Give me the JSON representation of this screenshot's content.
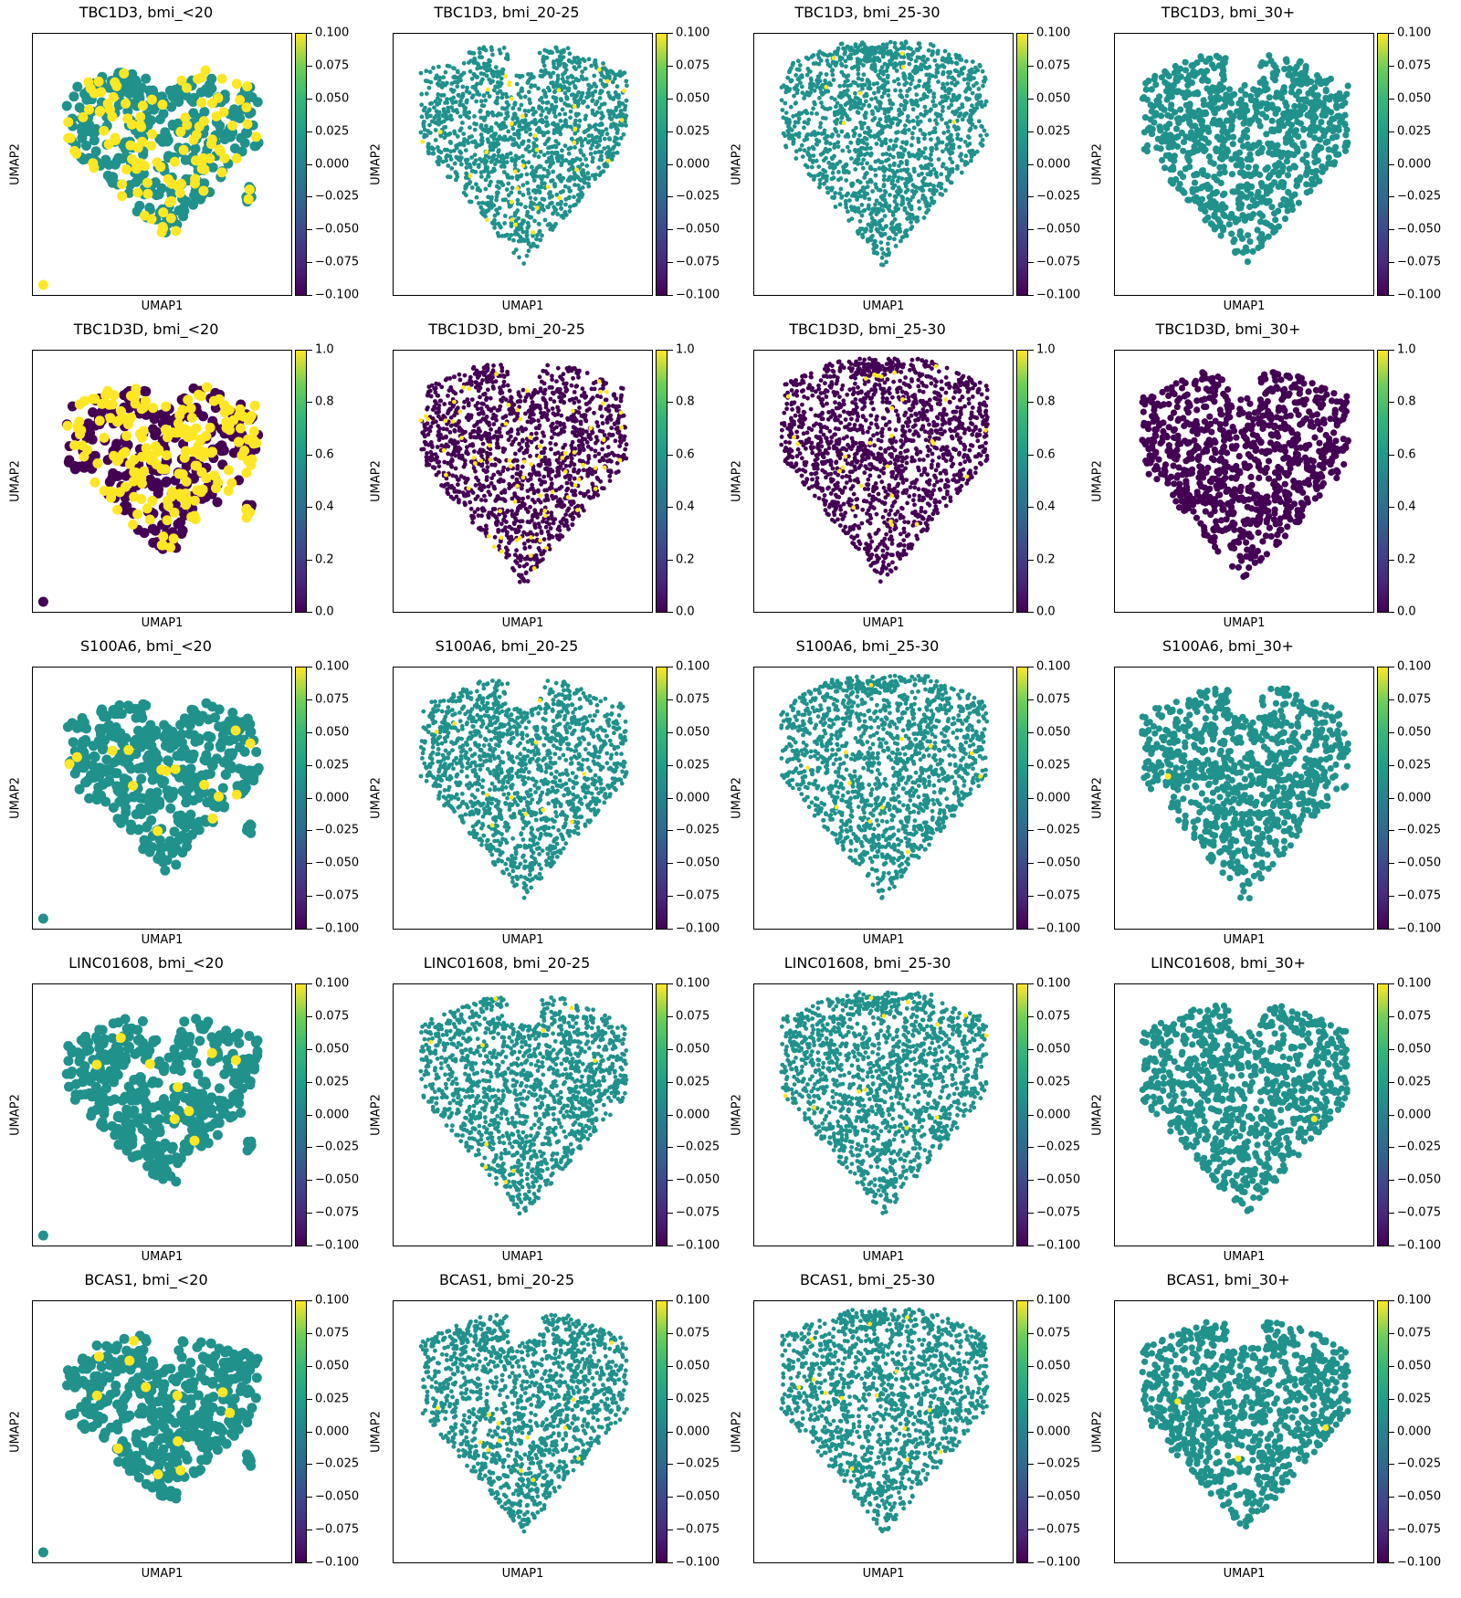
{
  "figure": {
    "xlabel": "UMAP1",
    "ylabel": "UMAP2"
  },
  "colors": {
    "expressed": "#fde725",
    "not_expressed_zero_scale": "#21918c",
    "not_expressed_binary_scale": "#440154",
    "colormap": "viridis"
  },
  "colorbars": {
    "symmetric": [
      "0.100",
      "0.075",
      "0.050",
      "0.025",
      "0.000",
      "−0.025",
      "−0.050",
      "−0.075",
      "−0.100"
    ],
    "unit": [
      "1.0",
      "0.8",
      "0.6",
      "0.4",
      "0.2",
      "0.0"
    ]
  },
  "chart_data": [
    {
      "type": "scatter",
      "title": "TBC1D3, bmi_<20",
      "xlabel": "UMAP1",
      "ylabel": "UMAP2",
      "colorbar_range": [
        -0.1,
        0.1
      ],
      "legend": "colorbar-right",
      "grid": false
    },
    {
      "type": "scatter",
      "title": "TBC1D3, bmi_20-25",
      "xlabel": "UMAP1",
      "ylabel": "UMAP2",
      "colorbar_range": [
        -0.1,
        0.1
      ],
      "legend": "colorbar-right",
      "grid": false
    },
    {
      "type": "scatter",
      "title": "TBC1D3, bmi_25-30",
      "xlabel": "UMAP1",
      "ylabel": "UMAP2",
      "colorbar_range": [
        -0.1,
        0.1
      ],
      "legend": "colorbar-right",
      "grid": false
    },
    {
      "type": "scatter",
      "title": "TBC1D3, bmi_30+",
      "xlabel": "UMAP1",
      "ylabel": "UMAP2",
      "colorbar_range": [
        -0.1,
        0.1
      ],
      "legend": "colorbar-right",
      "grid": false
    },
    {
      "type": "scatter",
      "title": "TBC1D3D, bmi_<20",
      "xlabel": "UMAP1",
      "ylabel": "UMAP2",
      "colorbar_range": [
        0.0,
        1.0
      ],
      "legend": "colorbar-right",
      "grid": false
    },
    {
      "type": "scatter",
      "title": "TBC1D3D, bmi_20-25",
      "xlabel": "UMAP1",
      "ylabel": "UMAP2",
      "colorbar_range": [
        0.0,
        1.0
      ],
      "legend": "colorbar-right",
      "grid": false
    },
    {
      "type": "scatter",
      "title": "TBC1D3D, bmi_25-30",
      "xlabel": "UMAP1",
      "ylabel": "UMAP2",
      "colorbar_range": [
        0.0,
        1.0
      ],
      "legend": "colorbar-right",
      "grid": false
    },
    {
      "type": "scatter",
      "title": "TBC1D3D, bmi_30+",
      "xlabel": "UMAP1",
      "ylabel": "UMAP2",
      "colorbar_range": [
        0.0,
        1.0
      ],
      "legend": "colorbar-right",
      "grid": false
    },
    {
      "type": "scatter",
      "title": "S100A6, bmi_<20",
      "xlabel": "UMAP1",
      "ylabel": "UMAP2",
      "colorbar_range": [
        -0.1,
        0.1
      ],
      "legend": "colorbar-right",
      "grid": false
    },
    {
      "type": "scatter",
      "title": "S100A6, bmi_20-25",
      "xlabel": "UMAP1",
      "ylabel": "UMAP2",
      "colorbar_range": [
        -0.1,
        0.1
      ],
      "legend": "colorbar-right",
      "grid": false
    },
    {
      "type": "scatter",
      "title": "S100A6, bmi_25-30",
      "xlabel": "UMAP1",
      "ylabel": "UMAP2",
      "colorbar_range": [
        -0.1,
        0.1
      ],
      "legend": "colorbar-right",
      "grid": false
    },
    {
      "type": "scatter",
      "title": "S100A6, bmi_30+",
      "xlabel": "UMAP1",
      "ylabel": "UMAP2",
      "colorbar_range": [
        -0.1,
        0.1
      ],
      "legend": "colorbar-right",
      "grid": false
    },
    {
      "type": "scatter",
      "title": "LINC01608, bmi_<20",
      "xlabel": "UMAP1",
      "ylabel": "UMAP2",
      "colorbar_range": [
        -0.1,
        0.1
      ],
      "legend": "colorbar-right",
      "grid": false
    },
    {
      "type": "scatter",
      "title": "LINC01608, bmi_20-25",
      "xlabel": "UMAP1",
      "ylabel": "UMAP2",
      "colorbar_range": [
        -0.1,
        0.1
      ],
      "legend": "colorbar-right",
      "grid": false
    },
    {
      "type": "scatter",
      "title": "LINC01608, bmi_25-30",
      "xlabel": "UMAP1",
      "ylabel": "UMAP2",
      "colorbar_range": [
        -0.1,
        0.1
      ],
      "legend": "colorbar-right",
      "grid": false
    },
    {
      "type": "scatter",
      "title": "LINC01608, bmi_30+",
      "xlabel": "UMAP1",
      "ylabel": "UMAP2",
      "colorbar_range": [
        -0.1,
        0.1
      ],
      "legend": "colorbar-right",
      "grid": false
    },
    {
      "type": "scatter",
      "title": "BCAS1, bmi_<20",
      "xlabel": "UMAP1",
      "ylabel": "UMAP2",
      "colorbar_range": [
        -0.1,
        0.1
      ],
      "legend": "colorbar-right",
      "grid": false
    },
    {
      "type": "scatter",
      "title": "BCAS1, bmi_20-25",
      "xlabel": "UMAP1",
      "ylabel": "UMAP2",
      "colorbar_range": [
        -0.1,
        0.1
      ],
      "legend": "colorbar-right",
      "grid": false
    },
    {
      "type": "scatter",
      "title": "BCAS1, bmi_25-30",
      "xlabel": "UMAP1",
      "ylabel": "UMAP2",
      "colorbar_range": [
        -0.1,
        0.1
      ],
      "legend": "colorbar-right",
      "grid": false
    },
    {
      "type": "scatter",
      "title": "BCAS1, bmi_30+",
      "xlabel": "UMAP1",
      "ylabel": "UMAP2",
      "colorbar_range": [
        -0.1,
        0.1
      ],
      "legend": "colorbar-right",
      "grid": false
    }
  ]
}
